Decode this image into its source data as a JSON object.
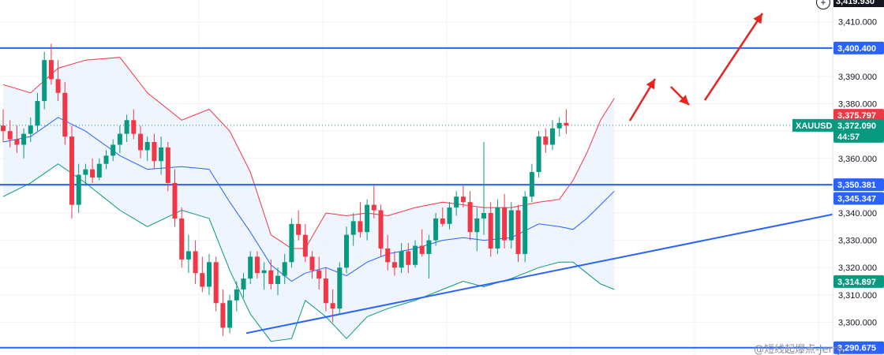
{
  "chart_data": {
    "type": "candlestick",
    "symbol": "XAUUSD",
    "countdown": "44:57",
    "current_price": "3,372.090",
    "ylim": [
      3288,
      3418
    ],
    "y_ticks": [
      {
        "value": 3410,
        "label": "3,410.000"
      },
      {
        "value": 3390,
        "label": "3,390.000"
      },
      {
        "value": 3380,
        "label": "3,380.000"
      },
      {
        "value": 3360,
        "label": "3,360.000"
      },
      {
        "value": 3340,
        "label": "3,340.000"
      },
      {
        "value": 3330,
        "label": "3,330.000"
      },
      {
        "value": 3320,
        "label": "3,320.000"
      },
      {
        "value": 3310,
        "label": "3,310.000"
      },
      {
        "value": 3300,
        "label": "3,300.000"
      }
    ],
    "top_price_badge": "3,419.930",
    "price_tags": [
      {
        "value": 3400.4,
        "label": "3,400.400",
        "color": "#2962ff"
      },
      {
        "value": 3375.797,
        "label": "3,375.797",
        "color": "#f23645"
      },
      {
        "value": 3350.381,
        "label": "3,350.381",
        "color": "#2962ff"
      },
      {
        "value": 3345.347,
        "label": "3,345.347",
        "color": "#2962ff"
      },
      {
        "value": 3314.897,
        "label": "3,314.897",
        "color": "#089981"
      },
      {
        "value": 3290.675,
        "label": "3,290.675",
        "color": "#2962ff"
      }
    ],
    "horizontal_lines": [
      3400.4,
      3350.381,
      3290.675
    ],
    "trendline": {
      "from": {
        "bar": 0,
        "price": 3296
      },
      "to": {
        "bar": 88,
        "price": 3339.5
      }
    },
    "candles": [
      [
        3372,
        3378,
        3366,
        3370
      ],
      [
        3370,
        3374,
        3364,
        3367
      ],
      [
        3367,
        3372,
        3362,
        3365
      ],
      [
        3365,
        3371,
        3360,
        3369
      ],
      [
        3369,
        3375,
        3366,
        3372
      ],
      [
        3372,
        3384,
        3370,
        3381
      ],
      [
        3381,
        3399,
        3378,
        3396
      ],
      [
        3396,
        3402,
        3387,
        3389
      ],
      [
        3389,
        3396,
        3381,
        3384
      ],
      [
        3384,
        3388,
        3365,
        3368
      ],
      [
        3368,
        3372,
        3338,
        3343
      ],
      [
        3343,
        3358,
        3340,
        3354
      ],
      [
        3354,
        3358,
        3350,
        3356
      ],
      [
        3356,
        3360,
        3351,
        3353
      ],
      [
        3353,
        3360,
        3352,
        3358
      ],
      [
        3358,
        3363,
        3356,
        3361
      ],
      [
        3361,
        3367,
        3359,
        3365
      ],
      [
        3365,
        3372,
        3362,
        3369
      ],
      [
        3369,
        3376,
        3366,
        3374
      ],
      [
        3374,
        3378,
        3367,
        3369
      ],
      [
        3369,
        3372,
        3360,
        3363
      ],
      [
        3363,
        3368,
        3359,
        3366
      ],
      [
        3366,
        3369,
        3356,
        3359
      ],
      [
        3359,
        3368,
        3354,
        3364
      ],
      [
        3364,
        3366,
        3348,
        3351
      ],
      [
        3351,
        3356,
        3335,
        3338
      ],
      [
        3338,
        3342,
        3320,
        3323
      ],
      [
        3323,
        3332,
        3318,
        3326
      ],
      [
        3326,
        3330,
        3314,
        3318
      ],
      [
        3318,
        3324,
        3311,
        3313
      ],
      [
        3313,
        3325,
        3310,
        3322
      ],
      [
        3322,
        3324,
        3304,
        3307
      ],
      [
        3307,
        3312,
        3295,
        3298
      ],
      [
        3298,
        3310,
        3296,
        3308
      ],
      [
        3308,
        3315,
        3304,
        3312
      ],
      [
        3312,
        3318,
        3309,
        3316
      ],
      [
        3316,
        3326,
        3314,
        3324
      ],
      [
        3324,
        3326,
        3316,
        3318
      ],
      [
        3318,
        3322,
        3312,
        3319
      ],
      [
        3319,
        3323,
        3312,
        3314
      ],
      [
        3314,
        3320,
        3310,
        3317
      ],
      [
        3317,
        3325,
        3314,
        3322
      ],
      [
        3322,
        3338,
        3320,
        3336
      ],
      [
        3336,
        3341,
        3330,
        3332
      ],
      [
        3332,
        3336,
        3322,
        3324
      ],
      [
        3324,
        3326,
        3316,
        3319
      ],
      [
        3319,
        3324,
        3312,
        3316
      ],
      [
        3316,
        3320,
        3304,
        3307
      ],
      [
        3307,
        3312,
        3300,
        3305
      ],
      [
        3305,
        3322,
        3303,
        3320
      ],
      [
        3320,
        3335,
        3318,
        3332
      ],
      [
        3332,
        3340,
        3328,
        3337
      ],
      [
        3337,
        3344,
        3331,
        3333
      ],
      [
        3333,
        3345,
        3330,
        3343
      ],
      [
        3343,
        3350,
        3338,
        3341
      ],
      [
        3341,
        3343,
        3324,
        3327
      ],
      [
        3327,
        3332,
        3319,
        3322
      ],
      [
        3322,
        3326,
        3317,
        3320
      ],
      [
        3320,
        3329,
        3318,
        3326
      ],
      [
        3326,
        3329,
        3318,
        3321
      ],
      [
        3321,
        3330,
        3320,
        3328
      ],
      [
        3328,
        3334,
        3324,
        3325
      ],
      [
        3325,
        3332,
        3316,
        3330
      ],
      [
        3330,
        3340,
        3328,
        3338
      ],
      [
        3338,
        3342,
        3335,
        3336
      ],
      [
        3336,
        3344,
        3334,
        3342
      ],
      [
        3342,
        3348,
        3339,
        3346
      ],
      [
        3346,
        3350,
        3342,
        3344
      ],
      [
        3344,
        3348,
        3330,
        3333
      ],
      [
        3333,
        3342,
        3326,
        3338
      ],
      [
        3338,
        3366,
        3332,
        3340
      ],
      [
        3340,
        3344,
        3324,
        3327
      ],
      [
        3327,
        3345,
        3325,
        3342
      ],
      [
        3342,
        3347,
        3327,
        3330
      ],
      [
        3330,
        3344,
        3327,
        3341
      ],
      [
        3341,
        3343,
        3322,
        3325
      ],
      [
        3325,
        3348,
        3322,
        3346
      ],
      [
        3346,
        3358,
        3344,
        3355
      ],
      [
        3355,
        3370,
        3353,
        3368
      ],
      [
        3368,
        3371,
        3362,
        3365
      ],
      [
        3365,
        3374,
        3363,
        3371
      ],
      [
        3371,
        3375,
        3368,
        3373
      ],
      [
        3373,
        3378,
        3369,
        3372
      ]
    ],
    "bollinger": {
      "upper": [
        [
          0,
          3387
        ],
        [
          4,
          3384
        ],
        [
          8,
          3393
        ],
        [
          12,
          3396
        ],
        [
          17,
          3397
        ],
        [
          21,
          3384
        ],
        [
          26,
          3374
        ],
        [
          30,
          3378
        ],
        [
          33,
          3370
        ],
        [
          36,
          3355
        ],
        [
          39,
          3332
        ],
        [
          42,
          3327
        ],
        [
          44,
          3327
        ],
        [
          47,
          3340
        ],
        [
          50,
          3339
        ],
        [
          53,
          3340
        ],
        [
          56,
          3339
        ],
        [
          60,
          3342
        ],
        [
          64,
          3344
        ],
        [
          67,
          3343
        ],
        [
          70,
          3342
        ],
        [
          74,
          3342
        ],
        [
          78,
          3344
        ],
        [
          81,
          3345
        ],
        [
          83,
          3352
        ],
        [
          85,
          3362
        ],
        [
          87,
          3374
        ],
        [
          89,
          3382
        ]
      ],
      "middle": [
        [
          0,
          3366
        ],
        [
          4,
          3368
        ],
        [
          8,
          3375
        ],
        [
          12,
          3370
        ],
        [
          17,
          3361
        ],
        [
          21,
          3356
        ],
        [
          26,
          3357
        ],
        [
          30,
          3356
        ],
        [
          33,
          3344
        ],
        [
          36,
          3333
        ],
        [
          39,
          3321
        ],
        [
          42,
          3315
        ],
        [
          44,
          3318
        ],
        [
          47,
          3320
        ],
        [
          50,
          3317
        ],
        [
          53,
          3322
        ],
        [
          56,
          3325
        ],
        [
          60,
          3327
        ],
        [
          64,
          3330
        ],
        [
          67,
          3331
        ],
        [
          70,
          3330
        ],
        [
          74,
          3331
        ],
        [
          78,
          3336
        ],
        [
          81,
          3335
        ],
        [
          83,
          3334
        ],
        [
          85,
          3338
        ],
        [
          87,
          3343
        ],
        [
          89,
          3348
        ]
      ],
      "lower": [
        [
          0,
          3346
        ],
        [
          4,
          3351
        ],
        [
          8,
          3358
        ],
        [
          12,
          3351
        ],
        [
          17,
          3341
        ],
        [
          21,
          3335
        ],
        [
          26,
          3341
        ],
        [
          30,
          3338
        ],
        [
          33,
          3319
        ],
        [
          36,
          3303
        ],
        [
          39,
          3293
        ],
        [
          42,
          3294
        ],
        [
          44,
          3308
        ],
        [
          47,
          3302
        ],
        [
          50,
          3294
        ],
        [
          53,
          3302
        ],
        [
          56,
          3305
        ],
        [
          60,
          3308
        ],
        [
          64,
          3312
        ],
        [
          67,
          3315
        ],
        [
          70,
          3313
        ],
        [
          74,
          3316
        ],
        [
          78,
          3320
        ],
        [
          81,
          3322
        ],
        [
          83,
          3322
        ],
        [
          85,
          3318
        ],
        [
          87,
          3314
        ],
        [
          89,
          3312
        ]
      ]
    },
    "colors": {
      "up": "#089981",
      "down": "#f23645",
      "hline": "#2962ff",
      "band_fill": "#eaf1fb",
      "upper_band": "#f23645",
      "middle_band": "#2962ff",
      "lower_band": "#089981",
      "arrows": "#e8251f"
    },
    "watermark": "@短线起爆点-Jerry"
  }
}
